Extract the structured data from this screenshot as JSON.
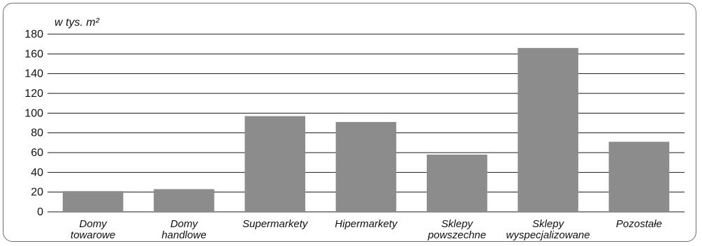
{
  "chart_data": {
    "type": "bar",
    "title": "",
    "ylabel": "w tys. m²",
    "xlabel": "",
    "ylim": [
      0,
      180
    ],
    "yticks": [
      0,
      20,
      40,
      60,
      80,
      100,
      120,
      140,
      160,
      180
    ],
    "grid": true,
    "legend": "none",
    "bar_color": "#8c8c8c",
    "grid_color": "#1a1a1a",
    "categories": [
      [
        "Domy",
        "towarowe"
      ],
      [
        "Domy",
        "handlowe"
      ],
      [
        "Supermarkety"
      ],
      [
        "Hipermarkety"
      ],
      [
        "Sklepy",
        "powszechne"
      ],
      [
        "Sklepy",
        "wyspecjalizowane"
      ],
      [
        "Pozostałe"
      ]
    ],
    "values": [
      21,
      23,
      97,
      91,
      58,
      166,
      71
    ]
  }
}
